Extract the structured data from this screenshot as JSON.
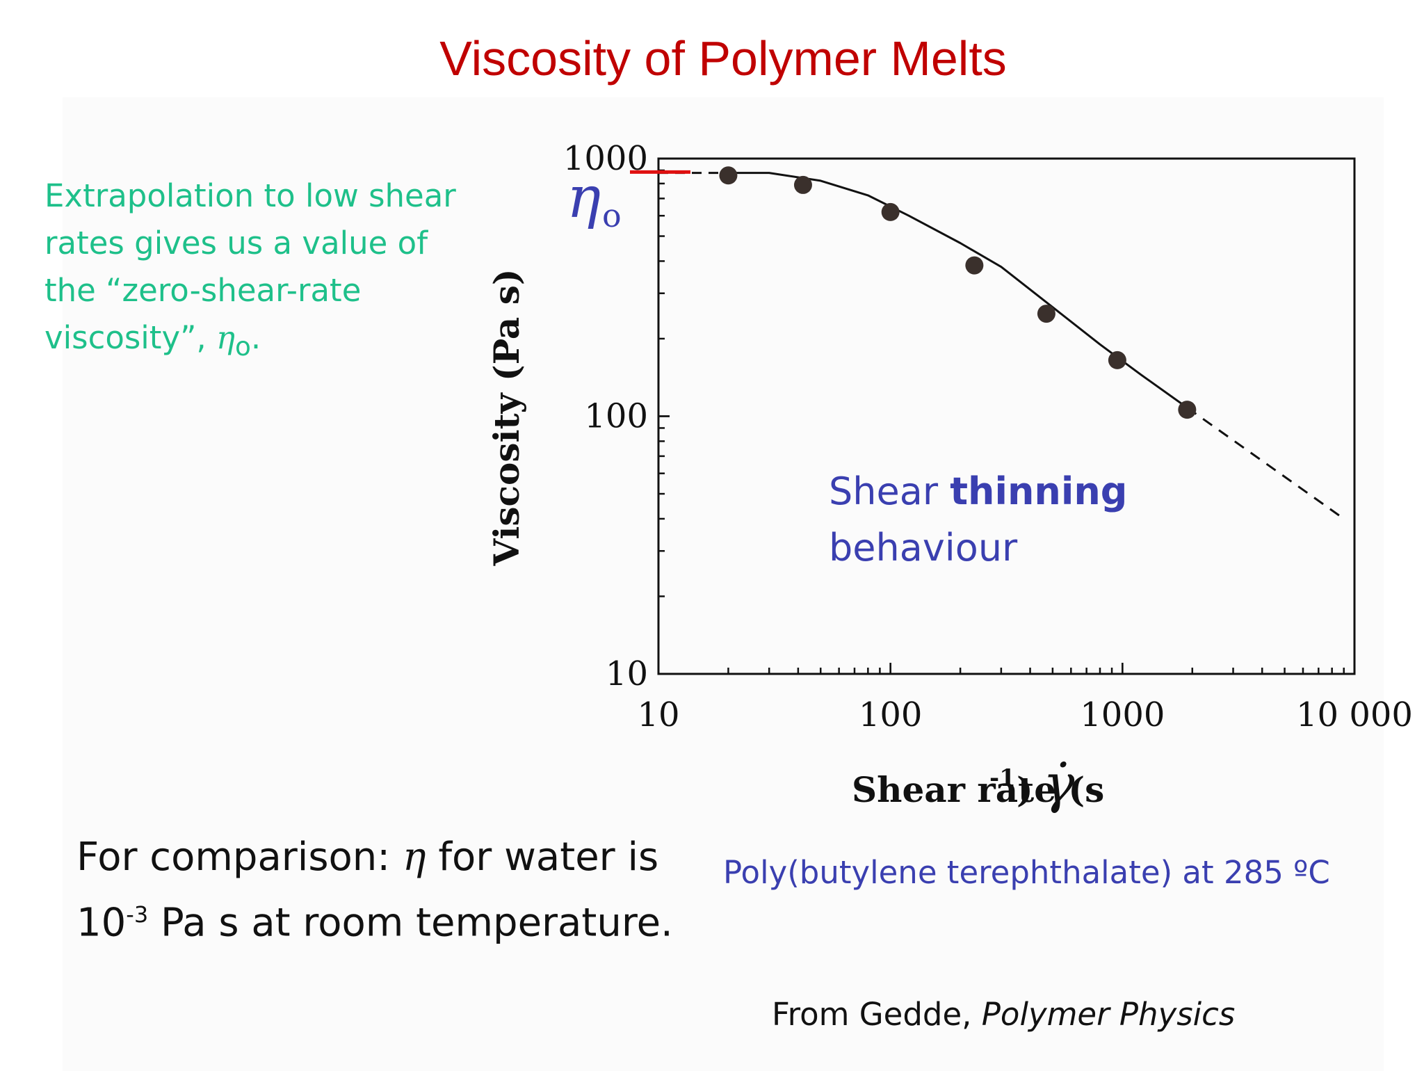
{
  "slide": {
    "title": "Viscosity of Polymer Melts",
    "note": {
      "text": "Extrapolation to low shear rates gives us a value of the “zero-shear-rate viscosity”, ",
      "symbol": "η",
      "subscript": "o",
      "end": "."
    },
    "comparison": {
      "part1": "For comparison: ",
      "symbol": "η",
      "part2": " for water is 10",
      "exponent": "-3",
      "part3": " Pa s at room temperature."
    },
    "caption": "Poly(butylene terephthalate) at 285 ºC",
    "source": {
      "prefix": "From Gedde, ",
      "book": "Polymer Physics"
    }
  },
  "chart_data": {
    "type": "scatter",
    "title": "",
    "xlabel": "Shear rate (s",
    "xlabel_exponent": "-1",
    "xlabel_suffix": ")",
    "xlabel_symbol": "γ̇",
    "ylabel": "Viscosity (Pa  s)",
    "xscale": "log",
    "yscale": "log",
    "xlim": [
      10,
      10000
    ],
    "ylim": [
      10,
      1000
    ],
    "x_ticks": [
      "10",
      "100",
      "1000",
      "10 000"
    ],
    "y_ticks": [
      "10",
      "100",
      "1000"
    ],
    "zero_shear_label": "η",
    "zero_shear_subscript": "o",
    "zero_shear_value": 870,
    "annotation": {
      "line1_normal": "Shear ",
      "line1_bold": "thinning",
      "line2": "behaviour"
    },
    "series": [
      {
        "points": [
          {
            "x": 20,
            "y": 860
          },
          {
            "x": 42,
            "y": 790
          },
          {
            "x": 100,
            "y": 620
          },
          {
            "x": 230,
            "y": 385
          },
          {
            "x": 470,
            "y": 250
          },
          {
            "x": 950,
            "y": 165
          },
          {
            "x": 1900,
            "y": 106
          }
        ],
        "fit": [
          {
            "x": 20,
            "y": 880
          },
          {
            "x": 30,
            "y": 880
          },
          {
            "x": 50,
            "y": 820
          },
          {
            "x": 80,
            "y": 720
          },
          {
            "x": 120,
            "y": 600
          },
          {
            "x": 200,
            "y": 470
          },
          {
            "x": 300,
            "y": 380
          },
          {
            "x": 500,
            "y": 265
          },
          {
            "x": 800,
            "y": 190
          },
          {
            "x": 1200,
            "y": 145
          },
          {
            "x": 1900,
            "y": 108
          }
        ],
        "extrapolation_low": [
          {
            "x": 10,
            "y": 880
          },
          {
            "x": 20,
            "y": 880
          }
        ],
        "extrapolation_high": [
          {
            "x": 1900,
            "y": 108
          },
          {
            "x": 9000,
            "y": 40
          }
        ]
      }
    ],
    "colors": {
      "axis": "#111111",
      "points": "#3a302c",
      "eta_marker": "#e01010",
      "eta_label": "#3a3fb0",
      "annotation": "#3a3fb0"
    }
  }
}
